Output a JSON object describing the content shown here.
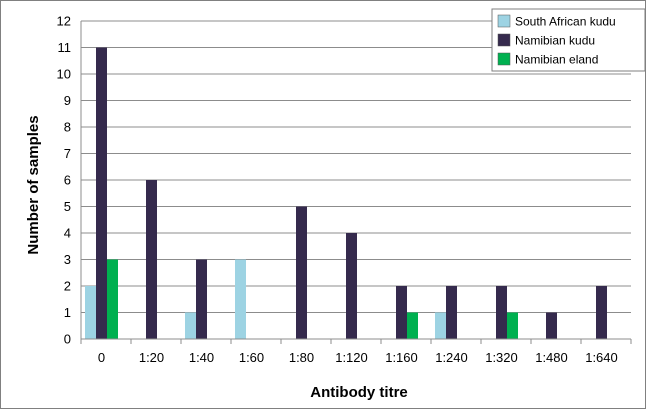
{
  "chart_data": {
    "type": "bar",
    "xlabel": "Antibody titre",
    "ylabel": "Number of samples",
    "ylim": [
      0,
      12
    ],
    "yticks": [
      0,
      1,
      2,
      3,
      4,
      5,
      6,
      7,
      8,
      9,
      10,
      11,
      12
    ],
    "grid": true,
    "legend_position": "top-right",
    "categories": [
      "0",
      "1:20",
      "1:40",
      "1:60",
      "1:80",
      "1:120",
      "1:160",
      "1:240",
      "1:320",
      "1:480",
      "1:640"
    ],
    "series": [
      {
        "name": "South African kudu",
        "color": "#9dd3e3",
        "values": [
          2,
          0,
          1,
          3,
          0,
          0,
          0,
          1,
          0,
          0,
          0
        ]
      },
      {
        "name": "Namibian kudu",
        "color": "#352a4d",
        "values": [
          11,
          6,
          3,
          0,
          5,
          4,
          2,
          2,
          2,
          1,
          2
        ]
      },
      {
        "name": "Namibian eland",
        "color": "#00b050",
        "values": [
          3,
          0,
          0,
          0,
          0,
          0,
          1,
          0,
          1,
          0,
          0
        ]
      }
    ]
  }
}
